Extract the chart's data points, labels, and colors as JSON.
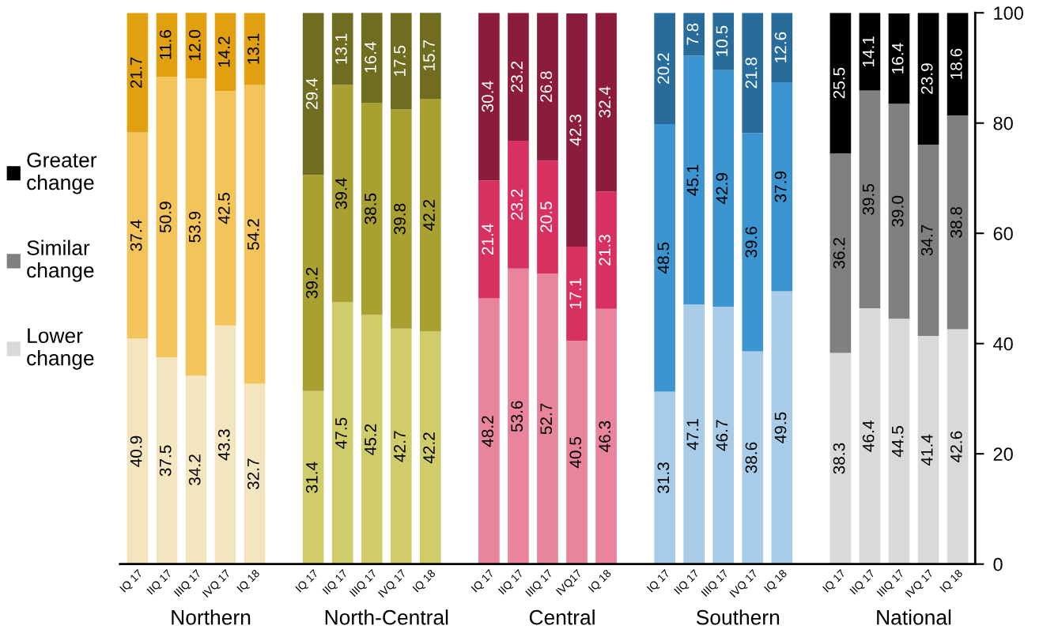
{
  "chart_data": {
    "type": "bar",
    "stacked": true,
    "legend": "left",
    "grid": false,
    "categories": [
      "IQ 17",
      "IIQ 17",
      "IIIQ 17",
      "IVQ 17",
      "IQ 18",
      null,
      "IQ 17",
      "IIQ 17",
      "IIIQ 17",
      "IVQ 17",
      "IQ 18",
      null,
      "IQ 17",
      "IIQ 17",
      "IIIQ 17",
      "IVQ17",
      "IQ 18",
      null,
      "IQ 17",
      "IIQ 17",
      "IIIQ 17",
      "IVQ 17",
      "IQ 18",
      null,
      "IQ 17",
      "IIQ 17",
      "IIIQ 17",
      "IVQ 17",
      "IQ 18"
    ],
    "series": [
      {
        "name": "Lower change",
        "color": "#d9d9d9",
        "values": [
          40.9,
          37.5,
          34.2,
          43.3,
          32.7,
          null,
          31.4,
          47.5,
          45.2,
          42.7,
          42.2,
          null,
          48.2,
          53.6,
          52.7,
          40.5,
          46.3,
          null,
          31.3,
          47.1,
          46.7,
          38.6,
          49.5,
          null,
          38.3,
          46.4,
          44.5,
          41.4,
          42.6
        ],
        "value_labels": [
          "40.9",
          "37.5",
          "34.2",
          "43.3",
          "32.7",
          null,
          "31.4",
          "47.5",
          "45.2",
          "42.7",
          "42.2",
          null,
          "48.2",
          "53.6",
          "52.7",
          "40.5",
          "46.3",
          null,
          "31.3",
          "47.1",
          "46.7",
          "38.6",
          "49.5",
          null,
          "38.3",
          "46.4",
          "44.5",
          "41.4",
          "42.6"
        ],
        "colors": [
          "#f3e5c0",
          "#f3e5c0",
          "#f3e5c0",
          "#f3e5c0",
          "#f3e5c0",
          null,
          "#d0cc6a",
          "#d0cc6a",
          "#d0cc6a",
          "#d0cc6a",
          "#d0cc6a",
          null,
          "#e8849c",
          "#e8849c",
          "#e8849c",
          "#e8849c",
          "#e8849c",
          null,
          "#a8cce8",
          "#a8cce8",
          "#a8cce8",
          "#a8cce8",
          "#a8cce8",
          null,
          "#d9d9d9",
          "#d9d9d9",
          "#d9d9d9",
          "#d9d9d9",
          "#d9d9d9"
        ]
      },
      {
        "name": "Similar change",
        "color": "#808080",
        "values": [
          37.4,
          50.9,
          53.9,
          42.5,
          54.2,
          null,
          39.2,
          39.4,
          38.5,
          39.8,
          42.2,
          null,
          21.4,
          23.2,
          20.5,
          17.1,
          21.3,
          null,
          48.5,
          45.1,
          42.9,
          39.6,
          37.9,
          null,
          36.2,
          39.5,
          39.0,
          34.7,
          38.8
        ],
        "value_labels": [
          "37.4",
          "50.9",
          "53.9",
          "42.5",
          "54.2",
          null,
          "39.2",
          "39.4",
          "38.5",
          "39.8",
          "42.2",
          null,
          "21.4",
          "23.2",
          "20.5",
          "17.1",
          "21.3",
          null,
          "48.5",
          "45.1",
          "42.9",
          "39.6",
          "37.9",
          null,
          "36.2",
          "39.5",
          "39.0",
          "34.7",
          "38.8"
        ],
        "colors": [
          "#f2c45a",
          "#f2c45a",
          "#f2c45a",
          "#f2c45a",
          "#f2c45a",
          null,
          "#a8a030",
          "#a8a030",
          "#a8a030",
          "#a8a030",
          "#a8a030",
          null,
          "#d83060",
          "#d83060",
          "#d83060",
          "#d83060",
          "#d83060",
          null,
          "#3c94d0",
          "#3c94d0",
          "#3c94d0",
          "#3c94d0",
          "#3c94d0",
          null,
          "#808080",
          "#808080",
          "#808080",
          "#808080",
          "#808080"
        ]
      },
      {
        "name": "Greater change",
        "color": "#000000",
        "values": [
          21.7,
          11.6,
          12.0,
          14.2,
          13.1,
          null,
          29.4,
          13.1,
          16.4,
          17.5,
          15.7,
          null,
          30.4,
          23.2,
          26.8,
          42.3,
          32.4,
          null,
          20.2,
          7.8,
          10.5,
          21.8,
          12.6,
          null,
          25.5,
          14.1,
          16.4,
          23.9,
          18.6
        ],
        "value_labels": [
          "21.7",
          "11.6",
          "12.0",
          "14.2",
          "13.1",
          null,
          "29.4",
          "13.1",
          "16.4",
          "17.5",
          "15.7",
          null,
          "30.4",
          "23.2",
          "26.8",
          "42.3",
          "32.4",
          null,
          "20.2",
          "7.8",
          "10.5",
          "21.8",
          "12.6",
          null,
          "25.5",
          "14.1",
          "16.4",
          "23.9",
          "18.6"
        ],
        "colors": [
          "#e0a010",
          "#e0a010",
          "#e0a010",
          "#e0a010",
          "#e0a010",
          null,
          "#706c20",
          "#706c20",
          "#706c20",
          "#706c20",
          "#706c20",
          null,
          "#8c1c3c",
          "#8c1c3c",
          "#8c1c3c",
          "#8c1c3c",
          "#8c1c3c",
          null,
          "#286c9c",
          "#286c9c",
          "#286c9c",
          "#286c9c",
          "#286c9c",
          null,
          "#000000",
          "#000000",
          "#000000",
          "#000000",
          "#000000"
        ]
      }
    ],
    "ylim": [
      0,
      100
    ],
    "yticks": [
      0,
      20,
      40,
      60,
      80,
      100
    ],
    "annotations": [
      "Northern",
      "North-Central",
      "Central",
      "Southern",
      "National"
    ]
  }
}
